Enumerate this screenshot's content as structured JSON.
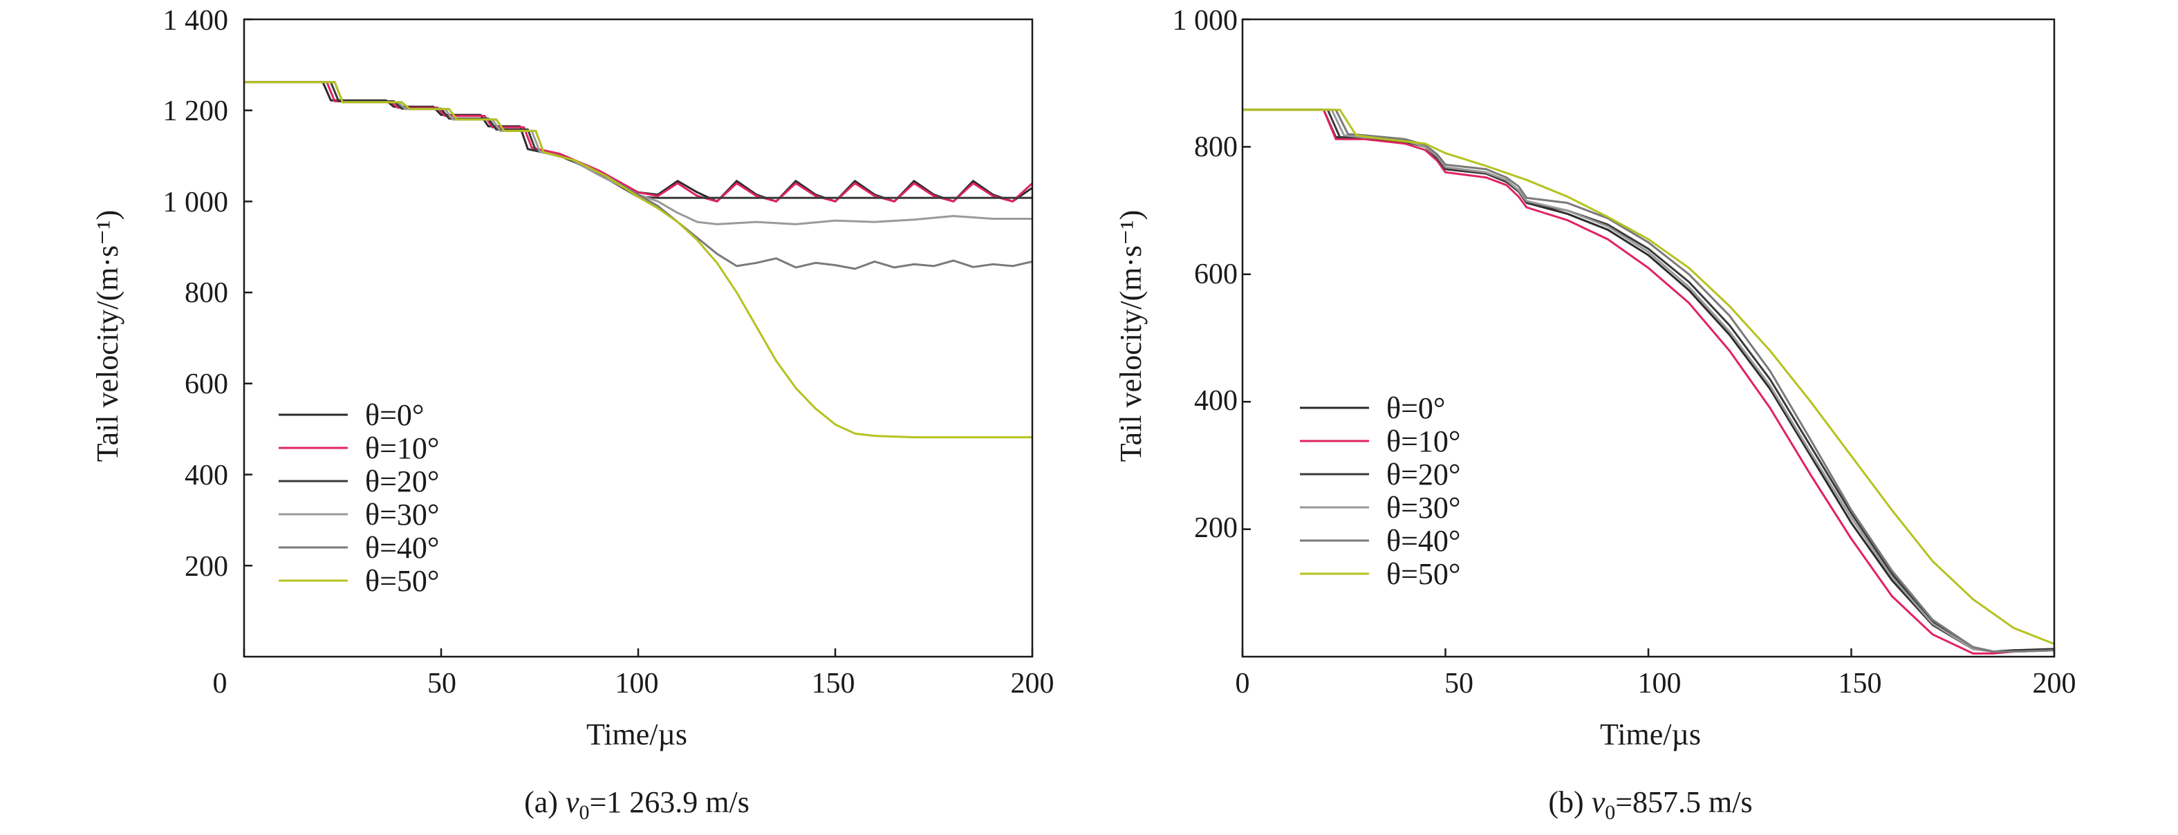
{
  "chart_data": [
    {
      "type": "line",
      "caption": "(a) v0=1 263.9 m/s",
      "caption_parts": {
        "prefix": "(a) ",
        "var": "v",
        "sub": "0",
        "suffix": "=1 263.9 m/s"
      },
      "xlabel": "Time/µs",
      "ylabel": "Tail velocity/(m·s⁻¹)",
      "xlim": [
        0,
        200
      ],
      "ylim": [
        0,
        1400
      ],
      "xticks": [
        0,
        50,
        100,
        150,
        200
      ],
      "xtick_labels": [
        "0",
        "50",
        "100",
        "150",
        "200"
      ],
      "yticks": [
        200,
        400,
        600,
        800,
        1000,
        1200,
        1400
      ],
      "ytick_labels": [
        "200",
        "400",
        "600",
        "800",
        "1 000",
        "1 200",
        "1 400"
      ],
      "grid": false,
      "legend_position": "lower-left",
      "series": [
        {
          "name": "θ=0°",
          "color": "#2b2b2b",
          "x": [
            0,
            20,
            22,
            36,
            38,
            48,
            50,
            60,
            62,
            70,
            72,
            80,
            90,
            100,
            105,
            110,
            115,
            120,
            125,
            130,
            135,
            140,
            145,
            150,
            155,
            160,
            165,
            170,
            175,
            180,
            185,
            190,
            195,
            200
          ],
          "y": [
            1262,
            1262,
            1222,
            1222,
            1208,
            1208,
            1190,
            1190,
            1165,
            1165,
            1115,
            1100,
            1065,
            1020,
            1015,
            1045,
            1020,
            1000,
            1045,
            1015,
            1000,
            1045,
            1015,
            1000,
            1045,
            1015,
            1000,
            1045,
            1015,
            1000,
            1045,
            1015,
            1000,
            1030
          ]
        },
        {
          "name": "θ=10°",
          "color": "#e0245e",
          "x": [
            0,
            21,
            23,
            37,
            39,
            49,
            51,
            61,
            63,
            71,
            73,
            80,
            90,
            100,
            105,
            110,
            115,
            120,
            125,
            130,
            135,
            140,
            145,
            150,
            155,
            160,
            165,
            170,
            175,
            180,
            185,
            190,
            195,
            200
          ],
          "y": [
            1262,
            1262,
            1220,
            1220,
            1206,
            1206,
            1188,
            1188,
            1163,
            1163,
            1118,
            1105,
            1068,
            1020,
            1012,
            1040,
            1012,
            1000,
            1040,
            1012,
            1000,
            1040,
            1012,
            1000,
            1040,
            1012,
            1000,
            1040,
            1012,
            1000,
            1040,
            1012,
            1000,
            1040
          ]
        },
        {
          "name": "θ=20°",
          "color": "#3a3a3a",
          "x": [
            0,
            22,
            24,
            38,
            40,
            50,
            52,
            62,
            64,
            72,
            74,
            82,
            90,
            100,
            105,
            110,
            115,
            200
          ],
          "y": [
            1262,
            1262,
            1220,
            1220,
            1204,
            1204,
            1182,
            1182,
            1158,
            1158,
            1112,
            1095,
            1060,
            1010,
            1008,
            1008,
            1008,
            1008
          ]
        },
        {
          "name": "θ=30°",
          "color": "#9a9a9a",
          "x": [
            0,
            23,
            25,
            39,
            41,
            51,
            53,
            63,
            65,
            73,
            75,
            83,
            90,
            100,
            105,
            110,
            115,
            120,
            130,
            140,
            150,
            160,
            170,
            180,
            190,
            200
          ],
          "y": [
            1262,
            1262,
            1218,
            1218,
            1203,
            1203,
            1180,
            1180,
            1155,
            1155,
            1110,
            1092,
            1058,
            1015,
            1000,
            975,
            955,
            950,
            955,
            950,
            958,
            955,
            960,
            968,
            962,
            962
          ]
        },
        {
          "name": "θ=40°",
          "color": "#7a7a7a",
          "x": [
            0,
            23,
            25,
            40,
            42,
            52,
            54,
            64,
            66,
            74,
            76,
            84,
            92,
            100,
            105,
            110,
            115,
            120,
            125,
            130,
            135,
            140,
            145,
            150,
            155,
            160,
            165,
            170,
            175,
            180,
            185,
            190,
            195,
            200
          ],
          "y": [
            1262,
            1262,
            1218,
            1218,
            1203,
            1203,
            1180,
            1180,
            1155,
            1155,
            1108,
            1090,
            1055,
            1015,
            990,
            955,
            920,
            885,
            858,
            865,
            875,
            855,
            865,
            860,
            852,
            868,
            855,
            862,
            858,
            870,
            856,
            862,
            858,
            868
          ]
        },
        {
          "name": "θ=50°",
          "color": "#b5c21f",
          "x": [
            0,
            23,
            25,
            40,
            42,
            52,
            54,
            64,
            66,
            74,
            76,
            84,
            92,
            100,
            105,
            110,
            115,
            120,
            125,
            130,
            135,
            140,
            145,
            150,
            155,
            160,
            170,
            180,
            190,
            200
          ],
          "y": [
            1262,
            1262,
            1218,
            1218,
            1203,
            1203,
            1180,
            1180,
            1155,
            1155,
            1108,
            1090,
            1055,
            1010,
            985,
            955,
            915,
            865,
            800,
            725,
            650,
            590,
            545,
            510,
            490,
            485,
            482,
            482,
            482,
            482
          ]
        }
      ]
    },
    {
      "type": "line",
      "caption": "(b) v0=857.5 m/s",
      "caption_parts": {
        "prefix": "(b) ",
        "var": "v",
        "sub": "0",
        "suffix": "=857.5 m/s"
      },
      "xlabel": "Time/µs",
      "ylabel": "Tail velocity/(m·s⁻¹)",
      "xlim": [
        0,
        200
      ],
      "ylim": [
        0,
        1000
      ],
      "xticks": [
        0,
        50,
        100,
        150,
        200
      ],
      "xtick_labels": [
        "0",
        "50",
        "100",
        "150",
        "200"
      ],
      "yticks": [
        200,
        400,
        600,
        800,
        1000
      ],
      "ytick_labels": [
        "200",
        "400",
        "600",
        "800",
        "1 000"
      ],
      "grid": false,
      "legend_position": "lower-left",
      "series": [
        {
          "name": "θ=0°",
          "color": "#2b2b2b",
          "x": [
            0,
            20,
            23,
            30,
            40,
            45,
            48,
            50,
            60,
            65,
            68,
            70,
            80,
            90,
            100,
            110,
            120,
            130,
            140,
            150,
            160,
            170,
            180,
            185,
            190,
            200
          ],
          "y": [
            858,
            858,
            815,
            815,
            808,
            800,
            782,
            765,
            758,
            745,
            730,
            712,
            695,
            670,
            630,
            575,
            505,
            420,
            315,
            210,
            120,
            50,
            12,
            8,
            10,
            12
          ]
        },
        {
          "name": "θ=10°",
          "color": "#e0245e",
          "x": [
            0,
            20,
            23,
            30,
            40,
            45,
            48,
            50,
            60,
            65,
            68,
            70,
            80,
            90,
            100,
            110,
            120,
            130,
            140,
            150,
            160,
            170,
            180,
            185,
            190,
            200
          ],
          "y": [
            858,
            858,
            812,
            812,
            805,
            795,
            778,
            760,
            752,
            740,
            722,
            705,
            685,
            655,
            610,
            555,
            480,
            390,
            285,
            185,
            95,
            35,
            5,
            5,
            8,
            10
          ]
        },
        {
          "name": "θ=20°",
          "color": "#3a3a3a",
          "x": [
            0,
            21,
            24,
            30,
            40,
            45,
            48,
            50,
            60,
            65,
            68,
            70,
            80,
            90,
            100,
            110,
            120,
            130,
            140,
            150,
            160,
            170,
            180,
            185,
            190,
            200
          ],
          "y": [
            858,
            858,
            815,
            815,
            808,
            800,
            782,
            765,
            758,
            745,
            730,
            712,
            700,
            678,
            640,
            588,
            520,
            435,
            330,
            225,
            130,
            55,
            15,
            8,
            8,
            10
          ]
        },
        {
          "name": "θ=30°",
          "color": "#9a9a9a",
          "x": [
            0,
            22,
            25,
            30,
            40,
            45,
            48,
            50,
            60,
            65,
            68,
            70,
            80,
            90,
            100,
            110,
            120,
            130,
            140,
            150,
            160,
            170,
            180,
            185,
            190,
            200
          ],
          "y": [
            858,
            858,
            818,
            815,
            810,
            800,
            785,
            768,
            760,
            748,
            732,
            715,
            700,
            675,
            635,
            580,
            510,
            425,
            320,
            218,
            125,
            52,
            12,
            8,
            8,
            10
          ]
        },
        {
          "name": "θ=40°",
          "color": "#7a7a7a",
          "x": [
            0,
            23,
            26,
            30,
            40,
            45,
            48,
            50,
            60,
            65,
            68,
            70,
            80,
            90,
            100,
            110,
            120,
            130,
            140,
            150,
            160,
            170,
            180,
            185,
            190,
            200
          ],
          "y": [
            858,
            858,
            820,
            818,
            812,
            803,
            788,
            772,
            765,
            752,
            738,
            720,
            712,
            688,
            650,
            600,
            535,
            448,
            340,
            230,
            135,
            58,
            15,
            8,
            8,
            10
          ]
        },
        {
          "name": "θ=50°",
          "color": "#b5c21f",
          "x": [
            0,
            24,
            28,
            35,
            45,
            50,
            60,
            70,
            80,
            90,
            100,
            110,
            120,
            130,
            140,
            150,
            160,
            170,
            180,
            190,
            200
          ],
          "y": [
            858,
            858,
            818,
            812,
            805,
            790,
            770,
            748,
            722,
            690,
            655,
            610,
            550,
            480,
            400,
            315,
            230,
            150,
            90,
            45,
            20
          ]
        }
      ]
    }
  ]
}
